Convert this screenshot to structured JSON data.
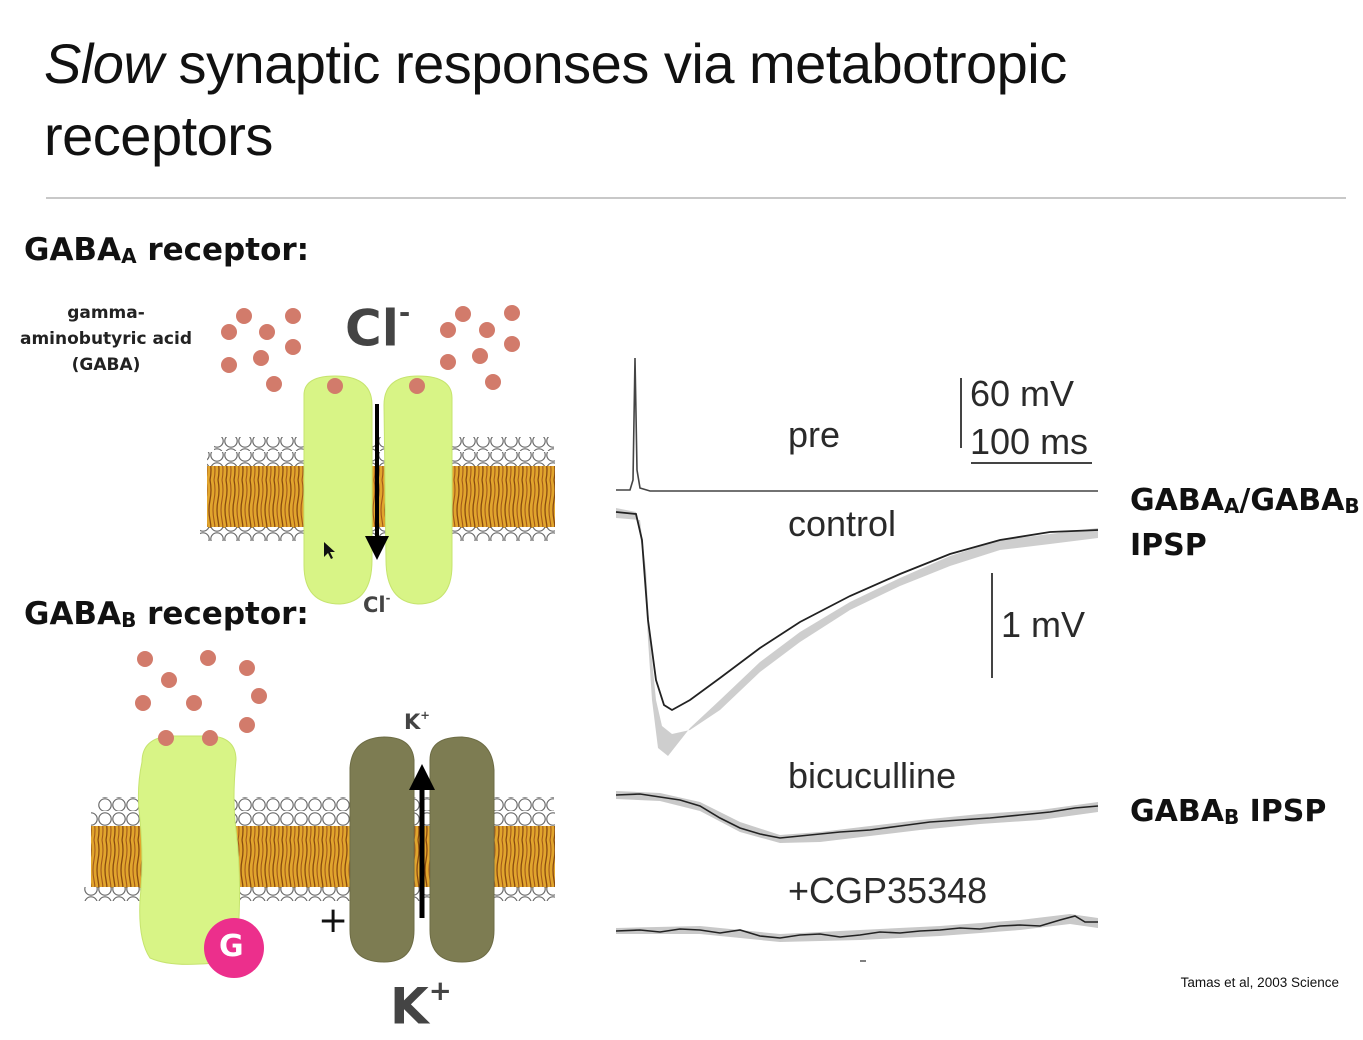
{
  "slide": {
    "title_italic": "Slow",
    "title_rest": " synaptic responses via metabotropic receptors"
  },
  "diagram": {
    "gaba_a": {
      "label_main": "GABA",
      "label_sub": "A",
      "label_tail": " receptor:"
    },
    "gaba_b": {
      "label_main": "GABA",
      "label_sub": "B",
      "label_tail": " receptor:"
    },
    "neurotransmitter_label": "gamma-aminobutyric acid (GABA)",
    "ions": {
      "cl_top": "Cl",
      "cl_top_charge": "-",
      "cl_bottom": "Cl",
      "cl_bottom_charge": "-",
      "k_top": "K",
      "k_top_charge": "+",
      "k_bottom": "K",
      "k_bottom_charge": "+",
      "plus_sign": "+",
      "g_protein": "G"
    },
    "colors": {
      "gaba_dot": "#d27b6b",
      "gaba_a_channel": "#d8f486",
      "k_channel": "#7d7c52",
      "g_protein": "#ec2f8c",
      "lipid_tail": "#c58a1c"
    }
  },
  "traces": {
    "pre": "pre",
    "scale_voltage_top": "60 mV",
    "scale_time": "100 ms",
    "control": "control",
    "scale_voltage_mid": "1 mV",
    "bicuculline": "bicuculline",
    "cgp": "+CGP35348"
  },
  "right_labels": {
    "combined_line1_a": "GABA",
    "combined_line1_a_sub": "A",
    "combined_line1_sep": "/GABA",
    "combined_line1_b_sub": "B",
    "combined_line2": "IPSP",
    "b_only_main": "GABA",
    "b_only_sub": "B",
    "b_only_tail": " IPSP"
  },
  "citation": "Tamas et al, 2003 Science"
}
